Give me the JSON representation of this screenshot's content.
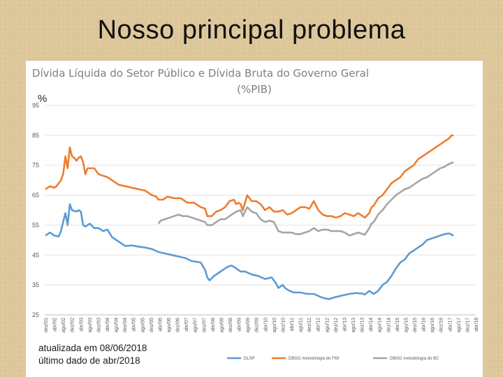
{
  "slide": {
    "title": "Nosso principal problema"
  },
  "chart_data": {
    "type": "line",
    "title": "Dívida Líquida do Setor Público e Dívida Bruta do Governo Geral",
    "subtitle": "(%PIB)",
    "ylabel": "%",
    "ylim": [
      25,
      95
    ],
    "yticks": [
      25,
      35,
      45,
      55,
      65,
      75,
      85,
      95
    ],
    "grid": true,
    "legend_position": "bottom",
    "notes": [
      "atualizada em 08/06/2018",
      "último dado de abr/2018"
    ],
    "x_tick_labels": [
      "dez/01",
      "abr/02",
      "ago/02",
      "dez/02",
      "abr/03",
      "ago/03",
      "dez/03",
      "abr/04",
      "ago/04",
      "dez/04",
      "abr/05",
      "ago/05",
      "dez/05",
      "abr/06",
      "ago/06",
      "dez/06",
      "abr/07",
      "ago/07",
      "dez/07",
      "abr/08",
      "ago/08",
      "dez/08",
      "abr/09",
      "ago/09",
      "dez/09",
      "abr/10",
      "ago/10",
      "dez/10",
      "abr/11",
      "ago/11",
      "dez/11",
      "abr/12",
      "ago/12",
      "dez/12",
      "abr/13",
      "ago/13",
      "dez/13",
      "abr/14",
      "ago/14",
      "dez/14",
      "abr/15",
      "ago/15",
      "dez/15",
      "abr/16",
      "ago/16",
      "dez/16",
      "abr/17",
      "ago/17",
      "dez/17",
      "abr/18"
    ],
    "series": [
      {
        "name": "DLSP",
        "color": "#5b9bd5",
        "points": [
          [
            0,
            51.5
          ],
          [
            2,
            52.5
          ],
          [
            4,
            51.5
          ],
          [
            6,
            51.2
          ],
          [
            7,
            53
          ],
          [
            8,
            56
          ],
          [
            9,
            59
          ],
          [
            10,
            55
          ],
          [
            11,
            62
          ],
          [
            12,
            60
          ],
          [
            14,
            59.5
          ],
          [
            15,
            60
          ],
          [
            16,
            59.5
          ],
          [
            17,
            55
          ],
          [
            18,
            54.5
          ],
          [
            19,
            55
          ],
          [
            20,
            55.5
          ],
          [
            22,
            54
          ],
          [
            24,
            54
          ],
          [
            26,
            53
          ],
          [
            28,
            53.5
          ],
          [
            30,
            51
          ],
          [
            33,
            49.5
          ],
          [
            36,
            48
          ],
          [
            39,
            48.2
          ],
          [
            42,
            47.8
          ],
          [
            45,
            47.5
          ],
          [
            48,
            47
          ],
          [
            51,
            46
          ],
          [
            54,
            45.5
          ],
          [
            57,
            45
          ],
          [
            60,
            44.5
          ],
          [
            63,
            44
          ],
          [
            66,
            43
          ],
          [
            70,
            42.5
          ],
          [
            72,
            40
          ],
          [
            73,
            37.5
          ],
          [
            74,
            36.5
          ],
          [
            76,
            38
          ],
          [
            78,
            39
          ],
          [
            80,
            40
          ],
          [
            82,
            41
          ],
          [
            84,
            41.5
          ],
          [
            86,
            40.5
          ],
          [
            88,
            39.5
          ],
          [
            90,
            39.5
          ],
          [
            93,
            38.5
          ],
          [
            96,
            38
          ],
          [
            99,
            37
          ],
          [
            102,
            37.5
          ],
          [
            104,
            35.5
          ],
          [
            105,
            34
          ],
          [
            107,
            35
          ],
          [
            108,
            34
          ],
          [
            110,
            33
          ],
          [
            112,
            32.5
          ],
          [
            115,
            32.5
          ],
          [
            118,
            32
          ],
          [
            121,
            32
          ],
          [
            124,
            31
          ],
          [
            126,
            30.5
          ],
          [
            128,
            30.3
          ],
          [
            131,
            31
          ],
          [
            134,
            31.5
          ],
          [
            137,
            32
          ],
          [
            140,
            32.3
          ],
          [
            143,
            32.1
          ],
          [
            144,
            31.8
          ],
          [
            146,
            33
          ],
          [
            148,
            32
          ],
          [
            150,
            33
          ],
          [
            152,
            35
          ],
          [
            154,
            36
          ],
          [
            156,
            38
          ],
          [
            158,
            40.5
          ],
          [
            160,
            42.5
          ],
          [
            162,
            43.5
          ],
          [
            164,
            45.5
          ],
          [
            166,
            46.5
          ],
          [
            168,
            47.5
          ],
          [
            170,
            48.5
          ],
          [
            172,
            50
          ],
          [
            174,
            50.5
          ],
          [
            176,
            51
          ],
          [
            178,
            51.5
          ],
          [
            180,
            52
          ],
          [
            182,
            52.2
          ],
          [
            184,
            51.5
          ]
        ]
      },
      {
        "name": "DBGG metodologia do FMI",
        "color": "#ed7d31",
        "points": [
          [
            0,
            67
          ],
          [
            2,
            68
          ],
          [
            4,
            67.5
          ],
          [
            5,
            68
          ],
          [
            6,
            69
          ],
          [
            7,
            70
          ],
          [
            8,
            72
          ],
          [
            9,
            78
          ],
          [
            10,
            74
          ],
          [
            11,
            81
          ],
          [
            12,
            78
          ],
          [
            13,
            77.5
          ],
          [
            14,
            76.5
          ],
          [
            15,
            77.5
          ],
          [
            16,
            78
          ],
          [
            17,
            76
          ],
          [
            18,
            72
          ],
          [
            19,
            74
          ],
          [
            20,
            74
          ],
          [
            22,
            74
          ],
          [
            24,
            72
          ],
          [
            26,
            71.5
          ],
          [
            28,
            71
          ],
          [
            30,
            70
          ],
          [
            33,
            68.5
          ],
          [
            36,
            68
          ],
          [
            39,
            67.5
          ],
          [
            42,
            67
          ],
          [
            45,
            66.5
          ],
          [
            48,
            65
          ],
          [
            50,
            64.5
          ],
          [
            51,
            63.5
          ],
          [
            53,
            63.5
          ],
          [
            55,
            64.5
          ],
          [
            58,
            64
          ],
          [
            61,
            64
          ],
          [
            64,
            62.5
          ],
          [
            67,
            62.5
          ],
          [
            70,
            61
          ],
          [
            72,
            60.5
          ],
          [
            73,
            58
          ],
          [
            75,
            58
          ],
          [
            77,
            59.5
          ],
          [
            79,
            60
          ],
          [
            81,
            61
          ],
          [
            83,
            63
          ],
          [
            85,
            63.5
          ],
          [
            86,
            62
          ],
          [
            87,
            62.5
          ],
          [
            88,
            62
          ],
          [
            89,
            60
          ],
          [
            91,
            65
          ],
          [
            93,
            63
          ],
          [
            95,
            63
          ],
          [
            97,
            62
          ],
          [
            99,
            60
          ],
          [
            101,
            61
          ],
          [
            103,
            59.5
          ],
          [
            105,
            59.5
          ],
          [
            107,
            60
          ],
          [
            109,
            58.5
          ],
          [
            111,
            59
          ],
          [
            113,
            60
          ],
          [
            115,
            61
          ],
          [
            117,
            61
          ],
          [
            119,
            60.5
          ],
          [
            121,
            63
          ],
          [
            123,
            60
          ],
          [
            125,
            58.5
          ],
          [
            127,
            58
          ],
          [
            129,
            58
          ],
          [
            131,
            57.5
          ],
          [
            133,
            58
          ],
          [
            135,
            59
          ],
          [
            137,
            58.5
          ],
          [
            139,
            58
          ],
          [
            141,
            59
          ],
          [
            143,
            58
          ],
          [
            144,
            57.5
          ],
          [
            146,
            59
          ],
          [
            147,
            61
          ],
          [
            148,
            61.5
          ],
          [
            150,
            64
          ],
          [
            152,
            65
          ],
          [
            154,
            67
          ],
          [
            156,
            69
          ],
          [
            158,
            70
          ],
          [
            160,
            71
          ],
          [
            162,
            73
          ],
          [
            164,
            74
          ],
          [
            166,
            75
          ],
          [
            168,
            77
          ],
          [
            170,
            78
          ],
          [
            172,
            79
          ],
          [
            174,
            80
          ],
          [
            176,
            81
          ],
          [
            178,
            82
          ],
          [
            180,
            83
          ],
          [
            182,
            84
          ],
          [
            183,
            85
          ],
          [
            184,
            85
          ]
        ]
      },
      {
        "name": "DBGG metodologia do BC",
        "color": "#a5a5a5",
        "points": [
          [
            51,
            55.5
          ],
          [
            52,
            56.5
          ],
          [
            54,
            57
          ],
          [
            56,
            57.5
          ],
          [
            58,
            58
          ],
          [
            60,
            58.5
          ],
          [
            62,
            58
          ],
          [
            64,
            58
          ],
          [
            66,
            57.5
          ],
          [
            68,
            57
          ],
          [
            70,
            56.5
          ],
          [
            72,
            56
          ],
          [
            73,
            55
          ],
          [
            75,
            55
          ],
          [
            77,
            56
          ],
          [
            79,
            57
          ],
          [
            81,
            57
          ],
          [
            83,
            58
          ],
          [
            85,
            59
          ],
          [
            86,
            59.5
          ],
          [
            88,
            60
          ],
          [
            89,
            58
          ],
          [
            91,
            61
          ],
          [
            93,
            59.5
          ],
          [
            95,
            59
          ],
          [
            97,
            57
          ],
          [
            99,
            56
          ],
          [
            101,
            56.5
          ],
          [
            103,
            56
          ],
          [
            105,
            53
          ],
          [
            107,
            52.5
          ],
          [
            109,
            52.5
          ],
          [
            111,
            52.5
          ],
          [
            113,
            52
          ],
          [
            115,
            52
          ],
          [
            117,
            52.5
          ],
          [
            119,
            53
          ],
          [
            121,
            54
          ],
          [
            123,
            53
          ],
          [
            125,
            53.5
          ],
          [
            127,
            53.5
          ],
          [
            129,
            53
          ],
          [
            131,
            53
          ],
          [
            133,
            53
          ],
          [
            135,
            52.5
          ],
          [
            137,
            51.5
          ],
          [
            139,
            52
          ],
          [
            141,
            52.5
          ],
          [
            143,
            52
          ],
          [
            144,
            51.8
          ],
          [
            146,
            54
          ],
          [
            147,
            55.5
          ],
          [
            148,
            56
          ],
          [
            150,
            58.5
          ],
          [
            152,
            60
          ],
          [
            154,
            62
          ],
          [
            156,
            63.5
          ],
          [
            158,
            65
          ],
          [
            160,
            66
          ],
          [
            162,
            67
          ],
          [
            164,
            67.5
          ],
          [
            166,
            68.5
          ],
          [
            168,
            69.5
          ],
          [
            170,
            70.5
          ],
          [
            172,
            71
          ],
          [
            174,
            72
          ],
          [
            176,
            73
          ],
          [
            178,
            74
          ],
          [
            180,
            74.5
          ],
          [
            182,
            75.5
          ],
          [
            184,
            76
          ]
        ]
      }
    ]
  }
}
